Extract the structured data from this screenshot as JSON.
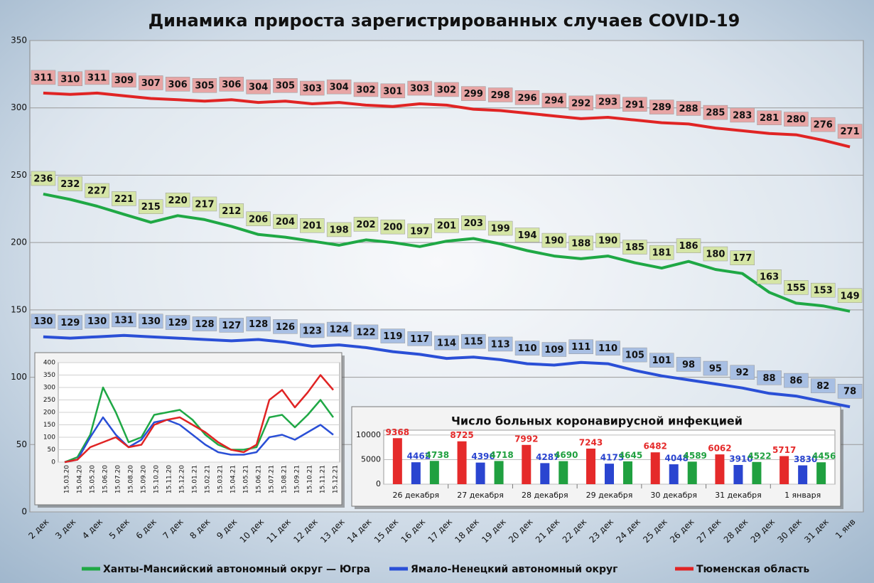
{
  "chart_data": [
    {
      "type": "line",
      "title": "Динамика прироста зарегистрированных случаев COVID-19",
      "categories": [
        "2 дек",
        "3 дек",
        "4 дек",
        "5 дек",
        "6 дек",
        "7 дек",
        "8 дек",
        "9 дек",
        "10 дек",
        "11 дек",
        "12 дек",
        "13 дек",
        "14 дек",
        "15 дек",
        "16 дек",
        "17 дек",
        "18 дек",
        "19 дек",
        "20 дек",
        "21 дек",
        "22 дек",
        "23 дек",
        "24 дек",
        "25 дек",
        "26 дек",
        "27 дек",
        "28 дек",
        "29 дек",
        "30 дек",
        "31 дек",
        "1 янв"
      ],
      "series": [
        {
          "name": "Ханты-Мансийский автономный округ — Югра",
          "color": "#1fa845",
          "label_color": "#d5e5a6",
          "values": [
            236,
            232,
            227,
            221,
            215,
            220,
            217,
            212,
            206,
            204,
            201,
            198,
            202,
            200,
            197,
            201,
            203,
            199,
            194,
            190,
            188,
            190,
            185,
            181,
            186,
            180,
            177,
            163,
            155,
            153,
            149
          ]
        },
        {
          "name": "Ямало-Ненецкий автономный округ",
          "color": "#2a4fd6",
          "label_color": "#a8bfe3",
          "values": [
            130,
            129,
            130,
            131,
            130,
            129,
            128,
            127,
            128,
            126,
            123,
            124,
            122,
            119,
            117,
            114,
            115,
            113,
            110,
            109,
            111,
            110,
            105,
            101,
            98,
            95,
            92,
            88,
            86,
            82,
            78
          ]
        },
        {
          "name": "Тюменская область",
          "color": "#e02424",
          "label_color": "#e7a5a5",
          "values": [
            311,
            310,
            311,
            309,
            307,
            306,
            305,
            306,
            304,
            305,
            303,
            304,
            302,
            301,
            303,
            302,
            299,
            298,
            296,
            294,
            292,
            293,
            291,
            289,
            288,
            285,
            283,
            281,
            280,
            276,
            271
          ]
        }
      ],
      "ylim": [
        0,
        350
      ],
      "yticks": [
        0,
        50,
        100,
        150,
        200,
        250,
        300,
        350
      ],
      "grid": true,
      "legend": "bottom"
    },
    {
      "type": "line",
      "categories": [
        "15.03.20",
        "15.04.20",
        "15.05.20",
        "15.06.20",
        "15.07.20",
        "15.08.20",
        "15.09.20",
        "15.10.20",
        "15.11.20",
        "15.12.20",
        "15.01.21",
        "15.02.21",
        "15.03.21",
        "15.04.21",
        "15.05.21",
        "15.06.21",
        "15.07.21",
        "15.08.21",
        "15.09.21",
        "15.10.21",
        "15.11.21",
        "15.12.21"
      ],
      "series": [
        {
          "color": "#1fa845",
          "values": [
            0,
            20,
            110,
            300,
            200,
            80,
            100,
            190,
            200,
            210,
            170,
            110,
            70,
            50,
            50,
            60,
            180,
            190,
            140,
            190,
            250,
            180
          ]
        },
        {
          "color": "#2a4fd6",
          "values": [
            0,
            10,
            100,
            180,
            110,
            60,
            90,
            160,
            170,
            150,
            110,
            70,
            40,
            30,
            30,
            40,
            100,
            110,
            90,
            120,
            150,
            110
          ]
        },
        {
          "color": "#e02424",
          "values": [
            0,
            10,
            60,
            80,
            100,
            60,
            70,
            150,
            170,
            180,
            150,
            120,
            80,
            50,
            40,
            70,
            250,
            290,
            220,
            280,
            350,
            290
          ]
        }
      ],
      "ylim": [
        0,
        400
      ],
      "yticks": [
        0,
        50,
        100,
        150,
        200,
        250,
        300,
        350,
        400
      ],
      "grid": true
    },
    {
      "type": "bar",
      "title": "Число больных коронавирусной инфекцией",
      "categories": [
        "26 декабря",
        "27 декабря",
        "28 декабря",
        "29 декабря",
        "30 декабря",
        "31 декабря",
        "1 января"
      ],
      "series": [
        {
          "color": "#e52a2a",
          "values": [
            9368,
            8725,
            7992,
            7243,
            6482,
            6062,
            5717
          ]
        },
        {
          "color": "#2a45d0",
          "values": [
            4462,
            4396,
            4287,
            4173,
            4048,
            3910,
            3830
          ]
        },
        {
          "color": "#20a040",
          "values": [
            4738,
            4718,
            4690,
            4645,
            4589,
            4522,
            4456
          ]
        }
      ],
      "ylim": [
        0,
        11000
      ],
      "yticks": [
        0,
        5000,
        10000
      ],
      "grid": true
    }
  ]
}
